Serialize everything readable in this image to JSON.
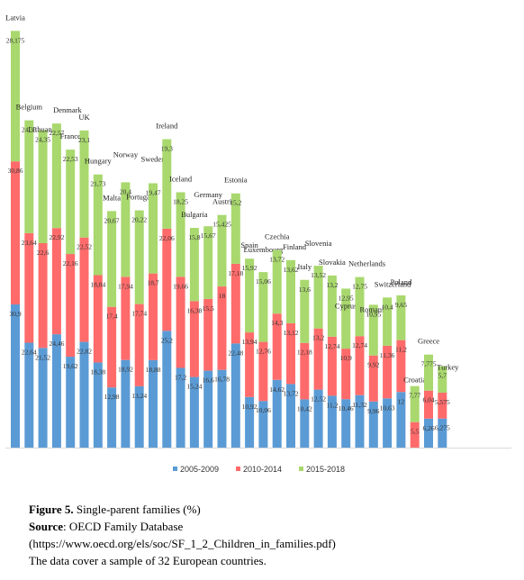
{
  "chart_data": {
    "type": "bar",
    "stacked": true,
    "categories": [
      "Latvia",
      "Belgium",
      "Lithuania",
      "Denmark",
      "France",
      "UK",
      "Hungary",
      "Malta",
      "Norway",
      "Portugal",
      "Sweden",
      "Ireland",
      "Iceland",
      "Bulgaria",
      "Germany",
      "Austria",
      "Estonia",
      "Spain",
      "Luxembourg",
      "Czechia",
      "Finland",
      "Italy",
      "Slovenia",
      "Slovakia",
      "Cyprus",
      "Netherlands",
      "Romania",
      "Switzerland",
      "Poland",
      "Croatia",
      "Greece",
      "Turkey"
    ],
    "series": [
      {
        "name": "2005-2009",
        "color": "#5b9bd5",
        "values": [
          30.9,
          22.64,
          21.52,
          24.46,
          19.62,
          22.82,
          18.38,
          12.98,
          18.92,
          13.24,
          18.88,
          25.2,
          17.2,
          15.24,
          16.6,
          16.78,
          22.48,
          10.92,
          10.06,
          14.62,
          13.72,
          10.42,
          12.52,
          11.2,
          10.46,
          11.32,
          9.96,
          10.63,
          12,
          null,
          6.26,
          6.275
        ],
        "labels": [
          "30,9",
          "22,64",
          "21,52",
          "24,46",
          "19,62",
          "22,82",
          "18,38",
          "12,98",
          "18,92",
          "13,24",
          "18,88",
          "25,2",
          "17,2",
          "15,24",
          "16,6",
          "16,78",
          "22,48",
          "10,92",
          "10,06",
          "14,62",
          "13,72",
          "10,42",
          "12,52",
          "11,2",
          "10,46",
          "11,32",
          "9,96",
          "10,63",
          "12",
          "",
          "6,26",
          "6,275"
        ]
      },
      {
        "name": "2010-2014",
        "color": "#ff6b6b",
        "values": [
          30.86,
          23.64,
          22.6,
          22.92,
          22.16,
          22.52,
          18.84,
          17.4,
          17.94,
          17.74,
          18.7,
          22.06,
          19.66,
          16.38,
          15.5,
          18,
          17.18,
          13.94,
          12.76,
          14.3,
          13.12,
          12.18,
          13.2,
          12.74,
          10.9,
          12.74,
          9.92,
          11.36,
          11.2,
          5.5,
          6.04,
          5.575
        ],
        "labels": [
          "30,86",
          "23,64",
          "22,6",
          "22,92",
          "22,16",
          "22,52",
          "18,84",
          "17,4",
          "17,94",
          "17,74",
          "18,7",
          "22,06",
          "19,66",
          "16,38",
          "15,5",
          "18",
          "17,18",
          "13,94",
          "12,76",
          "14,3",
          "13,12",
          "12,18",
          "13,2",
          "12,74",
          "10,9",
          "12,74",
          "9,92",
          "11,36",
          "11,2",
          "5,5",
          "6,04",
          "5,575"
        ]
      },
      {
        "name": "2015-2018",
        "color": "#a9d86e",
        "values": [
          28.175,
          24.35,
          24.35,
          22.57,
          22.53,
          23.1,
          21.73,
          20.67,
          20.4,
          20.22,
          19.47,
          19.3,
          18.25,
          15.8,
          15.67,
          15.425,
          15.2,
          15.92,
          15.06,
          13.72,
          13.62,
          13.6,
          13.52,
          13.2,
          12.95,
          12.75,
          10.95,
          10.4,
          9.65,
          7.77,
          7.775,
          5.7
        ],
        "labels": [
          "28,175",
          "24,35",
          "24,35",
          "22,57",
          "22,53",
          "23,1",
          "21,73",
          "20,67",
          "20,4",
          "20,22",
          "19,47",
          "19,3",
          "18,25",
          "15,8",
          "15,67",
          "15,425",
          "15,2",
          "15,92",
          "15,06",
          "13,72",
          "13,62",
          "13,6",
          "13,52",
          "13,2",
          "12,95",
          "12,75",
          "10,95",
          "10,4",
          "9,65",
          "7,77",
          "7,775",
          "5,7"
        ]
      }
    ],
    "legend_position": "bottom",
    "grid": false
  },
  "caption": {
    "figure_label": "Figure 5.",
    "figure_text": " Single-parent families (%)",
    "source_label": "Source",
    "source_text": ": OECD Family Database",
    "url": "(https://www.oecd.org/els/soc/SF_1_2_Children_in_families.pdf)",
    "note": "The data cover a sample of 32 European countries."
  }
}
